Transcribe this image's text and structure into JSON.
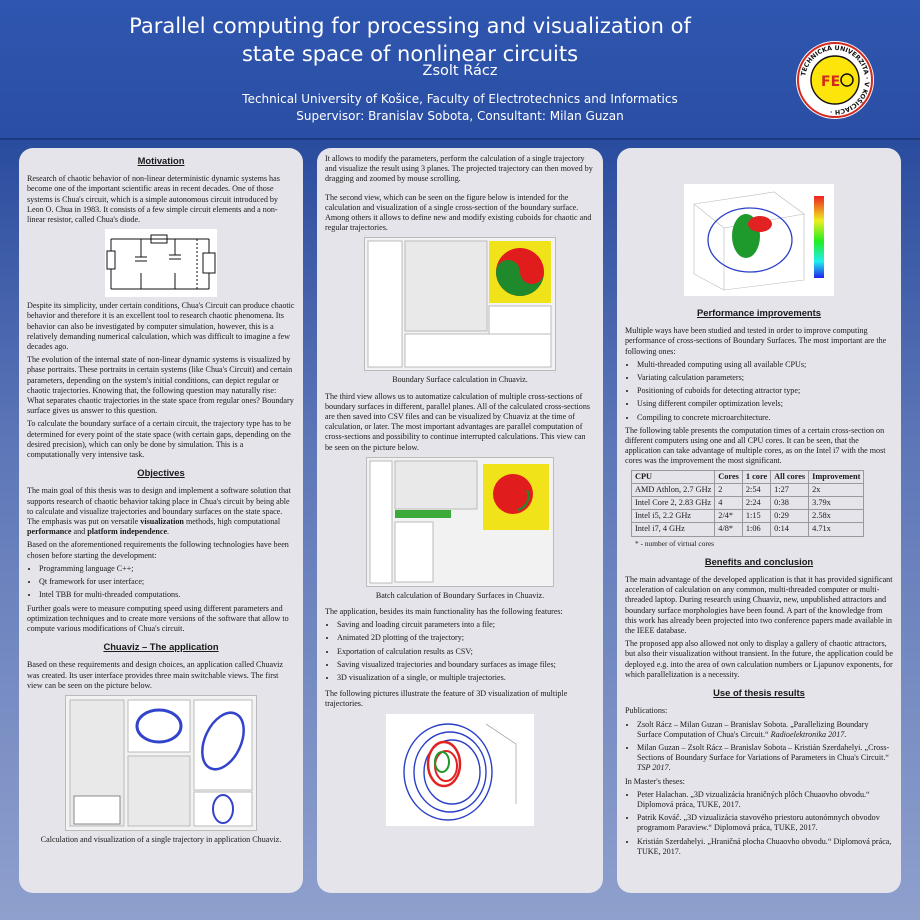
{
  "header": {
    "title": "Parallel computing for processing and visualization of state space of nonlinear circuits",
    "author": "Zsolt Rácz",
    "affiliation": "Technical University of Košice, Faculty of Electrotechnics and Informatics",
    "supervisor": "Supervisor: Branislav Sobota, Consultant: Milan Guzan",
    "logo_text": "TECHNICKÁ UNIVERZITA V KOŠICIACH",
    "colors": {
      "band": "#2f56b0",
      "background": "#27458f",
      "panel": "#e4e4ea",
      "logo_red": "#d22a1f"
    }
  },
  "motivation": {
    "heading": "Motivation",
    "p1": "Research of chaotic behavior of non-linear deterministic dynamic systems has become one of the important scientific areas in recent decades. One of those systems is Chua's circuit, which is a simple autonomous circuit introduced by Leon O. Chua in 1983. It consists of a few simple circuit elements and a non-linear resistor, called Chua's diode.",
    "p2": "Despite its simplicity, under certain conditions, Chua's Circuit can produce chaotic behavior and therefore it is an excellent tool to research chaotic phenomena. Its behavior can also be investigated by computer simulation, however, this is a relatively demanding numerical calculation, which was difficult to imagine a few decades ago.",
    "p3": "The evolution of the internal state of non-linear dynamic systems is visualized by phase portraits. These portraits in certain systems (like Chua's Circuit) and certain parameters, depending on the system's initial conditions, can depict regular or chaotic trajectories. Knowing that, the following question may naturally rise: What separates chaotic trajectories in the state space from regular ones? Boundary surface gives us answer to this question.",
    "p4": "To calculate the boundary surface of a certain circuit, the trajectory type has to be determined for every point of the state space (with certain gaps, depending on the desired precision), which can only be done by simulation. This is a computationally very intensive task."
  },
  "objectives": {
    "heading": "Objectives",
    "p1a": "The main goal of this thesis was to design and implement a software solution that supports research of chaotic behavior taking place in Chua's circuit by being able to calculate and visualize trajectories and boundary surfaces on the state space. The emphasis was put on versatile ",
    "b1": "visualization",
    "p1b": " methods, high computational ",
    "b2": "performance",
    "p1c": " and ",
    "b3": "platform independence",
    "p1d": ".",
    "p2": "Based on the aforementioned requirements the following technologies have been chosen before starting the development:",
    "items": [
      "Programming language C++;",
      "Qt framework for user interface;",
      "Intel TBB for multi-threaded computations."
    ],
    "p3": "Further goals were to measure computing speed using different parameters and optimization techniques and to create more versions of the software that allow to compute various modifications of Chua's circuit."
  },
  "chuaviz": {
    "heading": "Chuaviz – The application",
    "p1": "Based on these requirements and design choices, an application called Chuaviz was created. Its user interface provides three main switchable views. The first view can be seen on the picture below.",
    "caption1": "Calculation and visualization of a single trajectory in application Chuaviz."
  },
  "col2": {
    "p1": "It allows to modify the parameters, perform the calculation of a single trajectory and visualize the result using 3 planes. The projected trajectory can then moved by dragging and zoomed by mouse scrolling.",
    "p2": "The second view, which can be seen on the figure below is intended for the calculation and visualization of a single cross-section of the boundary surface. Among others it allows to define new and modify existing cuboids for chaotic and regular trajectories.",
    "caption2": "Boundary Surface calculation in Chuaviz.",
    "p3": "The third view allows us to automatize calculation of multiple cross-sections of boundary surfaces in different, parallel planes. All of the calculated cross-sections are then saved into CSV files and can be visualized by Chuaviz at the time of calculation, or later. The most important advantages are parallel computation of cross-sections and possibility to continue interrupted calculations. This view can be seen on the picture below.",
    "caption3": "Batch calculation of Boundary Surfaces in Chuaviz.",
    "p4": "The application, besides its main functionality has the following features:",
    "features": [
      "Saving and loading circuit parameters into a file;",
      "Animated 2D plotting of the trajectory;",
      "Exportation of calculation results as CSV;",
      "Saving visualized trajectories and boundary surfaces as image files;",
      "3D visualization of a single, or multiple trajectories."
    ],
    "p5": "The following pictures illustrate the feature of 3D visualization of multiple trajectories."
  },
  "performance": {
    "heading": "Performance improvements",
    "p1": "Multiple ways have been studied and tested in order to improve computing performance of cross-sections of Boundary Surfaces. The most important are the following ones:",
    "items": [
      "Multi-threaded computing using all available CPUs;",
      "Variating calculation parameters;",
      "Positioning of cuboids for detecting attractor type;",
      "Using different compiler optimization levels;",
      "Compiling to concrete microarchitecture."
    ],
    "p2": "The following table presents the computation times of a certain cross-section on different computers using one and all CPU cores. It can be seen, that the application can take advantage of multiple cores, as on the Intel i7 with the most cores was the improvement the most significant.",
    "table": {
      "headers": [
        "CPU",
        "Cores",
        "1 core",
        "All cores",
        "Improvement"
      ],
      "rows": [
        [
          "AMD Athlon, 2.7 GHz",
          "2",
          "2:54",
          "1:27",
          "2x"
        ],
        [
          "Intel Core 2, 2.83 GHz",
          "4",
          "2:24",
          "0:38",
          "3.79x"
        ],
        [
          "Intel i5, 2.2 GHz",
          "2/4*",
          "1:15",
          "0:29",
          "2.58x"
        ],
        [
          "Intel i7, 4 GHz",
          "4/8*",
          "1:06",
          "0:14",
          "4.71x"
        ]
      ],
      "note": "* - number of virtual cores"
    }
  },
  "benefits": {
    "heading": "Benefits and conclusion",
    "p1": "The main advantage of the developed application is that it has provided significant acceleration of calculation on any common, multi-threaded computer or multi-threaded laptop. During research using Chuaviz, new, unpublished attractors and boundary surface morphologies have been found. A part of the knowledge from this work has already been projected into two conference papers made available in the IEEE database.",
    "p2": "The proposed app also allowed not only to display a gallery of chaotic attractors, but also their visualization without transient. In the future, the application could be deployed e.g. into the area of own calculation numbers or Ljapunov exponents, for which parallelization is a necessity."
  },
  "use": {
    "heading": "Use of thesis results",
    "pub_label": "Publications:",
    "pub1a": "Zsolt Rácz – Milan Guzan – Branislav Sobota. „Parallelizing Boundary Surface Computation of Chua's Circuit.“ ",
    "pub1b": "Radioelektronika 2017",
    "pub1c": ".",
    "pub2a": "Milan Guzan – Zsolt Rácz – Branislav Sobota – Kristián Szerdahelyi. „Cross-Sections of Boundary Surface for Variations of Parameters in Chua's Circuit.“ ",
    "pub2b": "TSP 2017",
    "pub2c": ".",
    "masters_label": "In Master's theses:",
    "theses": [
      "Peter Halachan. „3D vizualizácia hraničných plôch Chuaovho obvodu.“ Diplomová práca, TUKE, 2017.",
      "Patrik Kováč. „3D vizualizácia stavového priestoru autonómnych obvodov programom Paraview.“ Diplomová práca, TUKE, 2017.",
      "Kristián Szerdahelyi. „Hraničná plocha Chuaovho obvodu.“ Diplomová práca, TUKE, 2017."
    ]
  }
}
